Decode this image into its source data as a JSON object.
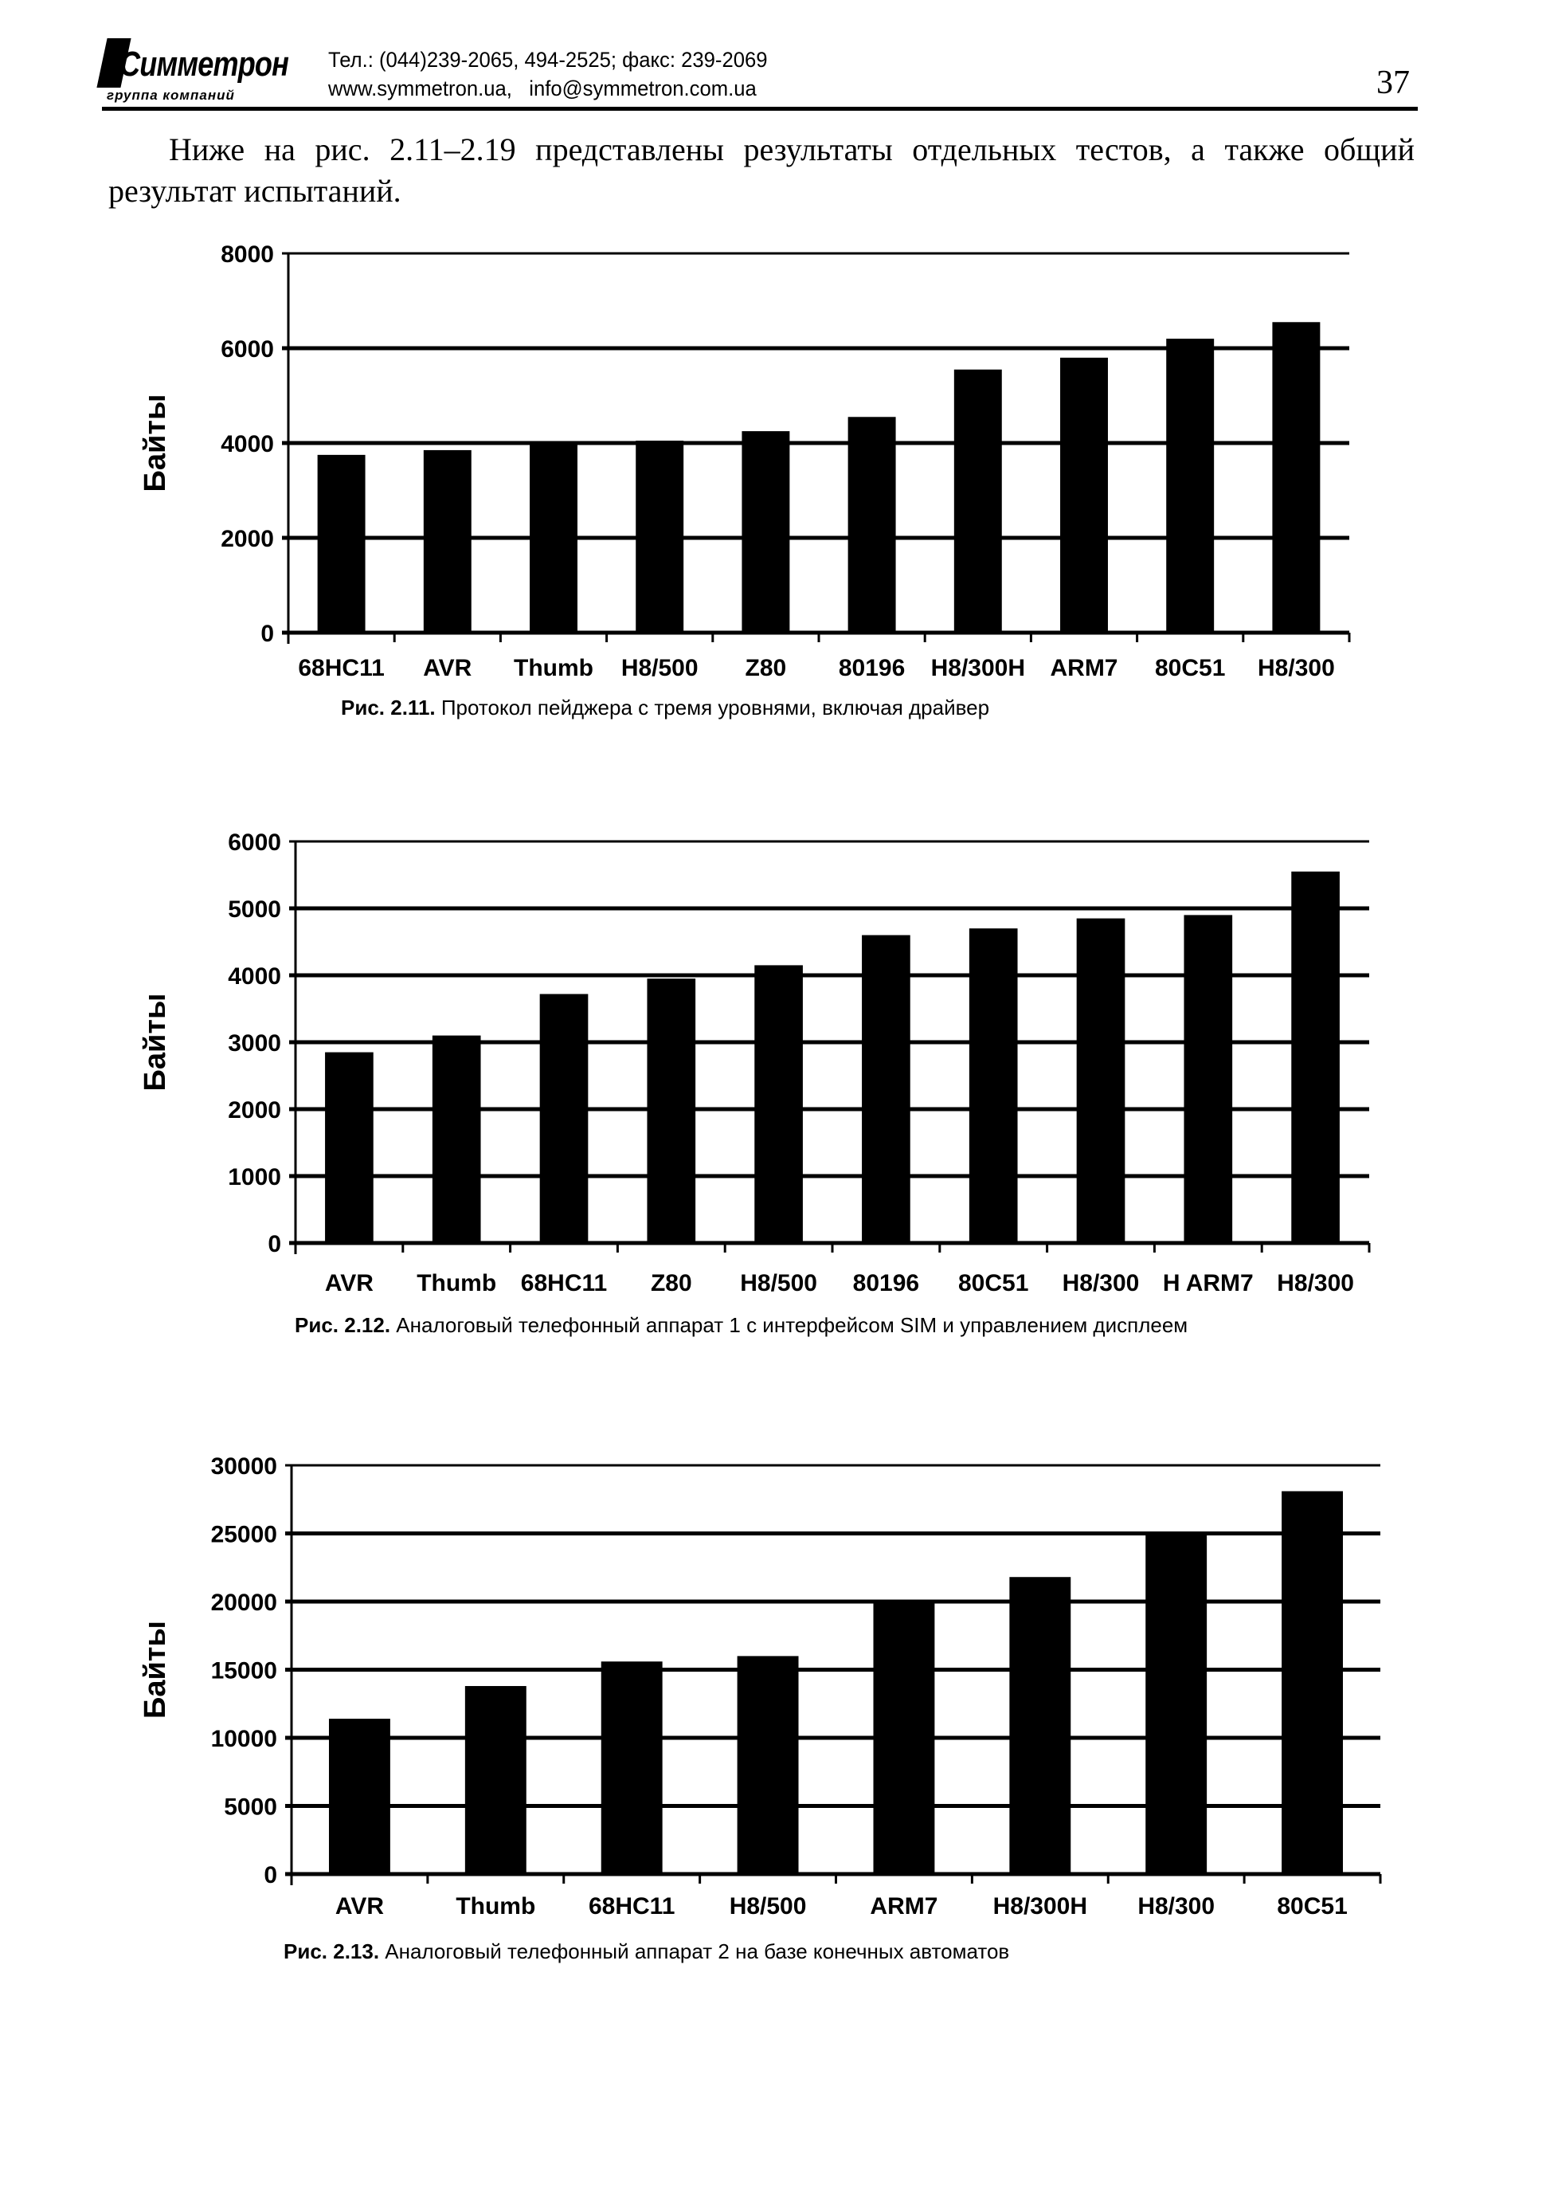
{
  "header": {
    "logo_text": "Симметрон",
    "logo_subtitle": "группа компаний",
    "phone_line": "Тел.: (044)239-2065, 494-2525; факс: 239-2069",
    "web_line": "www.symmetron.ua,   info@symmetron.com.ua",
    "page_number": "37"
  },
  "body": {
    "paragraph": "Ниже на рис. 2.11–2.19 представлены результаты отдельных тестов, а также общий результат испытаний."
  },
  "chart_data": [
    {
      "type": "bar",
      "caption_label": "Рис. 2.11.",
      "caption_text": "Протокол пейджера с тремя уровнями, включая драйвер",
      "ylabel": "Байты",
      "xlabel": "",
      "ylim": [
        0,
        8000
      ],
      "yticks": [
        "0",
        "2000",
        "4000",
        "6000",
        "8000"
      ],
      "grid": true,
      "categories": [
        "68HC11",
        "AVR",
        "Thumb",
        "H8/500",
        "Z80",
        "80196",
        "H8/300H",
        "ARM7",
        "80C51",
        "H8/300"
      ],
      "values": [
        3750,
        3850,
        4000,
        4050,
        4250,
        4550,
        5550,
        5800,
        6200,
        6550
      ],
      "bar_color": "#000000"
    },
    {
      "type": "bar",
      "caption_label": "Рис. 2.12.",
      "caption_text": "Аналоговый телефонный аппарат 1 с интерфейсом SIM и управлением дисплеем",
      "ylabel": "Байты",
      "xlabel": "",
      "ylim": [
        0,
        6000
      ],
      "yticks": [
        "0",
        "1000",
        "2000",
        "3000",
        "4000",
        "5000",
        "6000"
      ],
      "grid": true,
      "categories": [
        "AVR",
        "Thumb",
        "68HC11",
        "Z80",
        "H8/500",
        "80196",
        "80C51",
        "H8/300",
        "H ARM7",
        "H8/300"
      ],
      "values": [
        2850,
        3100,
        3720,
        3950,
        4150,
        4600,
        4700,
        4850,
        4900,
        5550
      ],
      "bar_color": "#000000"
    },
    {
      "type": "bar",
      "caption_label": "Рис. 2.13.",
      "caption_text": "Аналоговый телефонный аппарат 2 на базе конечных автоматов",
      "ylabel": "Байты",
      "xlabel": "",
      "ylim": [
        0,
        30000
      ],
      "yticks": [
        "0",
        "5000",
        "10000",
        "15000",
        "20000",
        "25000",
        "30000"
      ],
      "grid": true,
      "categories": [
        "AVR",
        "Thumb",
        "68HC11",
        "H8/500",
        "ARM7",
        "H8/300H",
        "H8/300",
        "80C51"
      ],
      "values": [
        11400,
        13800,
        15600,
        16000,
        20000,
        21800,
        24900,
        28100
      ],
      "bar_color": "#000000"
    }
  ]
}
